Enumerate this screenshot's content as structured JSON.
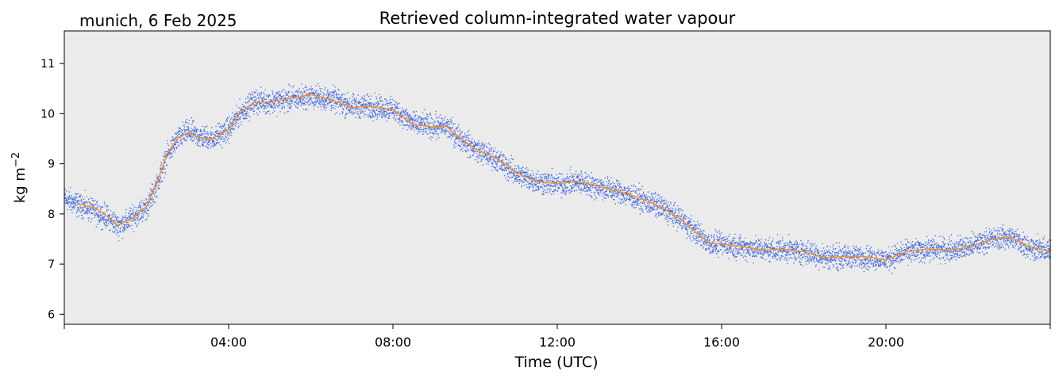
{
  "chart_data": {
    "type": "scatter",
    "title": "Retrieved column-integrated water vapour",
    "subtitle": "munich, 6 Feb 2025",
    "xlabel": "Time (UTC)",
    "ylabel": "kg m",
    "ylabel_superscript": "−2",
    "xlim": [
      0,
      24
    ],
    "ylim": [
      5.8,
      11.65
    ],
    "xticks": [
      {
        "value": 0,
        "label": ""
      },
      {
        "value": 4,
        "label": "04:00"
      },
      {
        "value": 8,
        "label": "08:00"
      },
      {
        "value": 12,
        "label": "12:00"
      },
      {
        "value": 16,
        "label": "16:00"
      },
      {
        "value": 20,
        "label": "20:00"
      },
      {
        "value": 24,
        "label": ""
      }
    ],
    "yticks": [
      {
        "value": 6,
        "label": "6"
      },
      {
        "value": 7,
        "label": "7"
      },
      {
        "value": 8,
        "label": "8"
      },
      {
        "value": 9,
        "label": "9"
      },
      {
        "value": 10,
        "label": "10"
      },
      {
        "value": 11,
        "label": "11"
      }
    ],
    "grid": false,
    "colors": {
      "background": "#ebebeb",
      "raw_points": "#4169e1",
      "smoothed_line": "#ff8c1a"
    },
    "series": [
      {
        "style": "points",
        "color": "#4169e1",
        "x": [
          0.0,
          0.5,
          1.0,
          1.3,
          1.5,
          2.0,
          2.25,
          2.5,
          2.75,
          3.0,
          3.3,
          3.6,
          4.0,
          4.25,
          4.6,
          5.0,
          5.5,
          6.0,
          6.5,
          7.0,
          7.5,
          8.0,
          8.25,
          8.5,
          9.0,
          9.3,
          9.5,
          10.0,
          10.5,
          11.0,
          11.5,
          12.0,
          12.5,
          13.0,
          13.5,
          14.0,
          14.5,
          15.0,
          15.5,
          15.7,
          16.0,
          16.5,
          17.0,
          17.5,
          18.0,
          18.5,
          19.0,
          19.5,
          20.0,
          20.5,
          21.0,
          21.5,
          22.0,
          22.5,
          23.0,
          23.5,
          24.0
        ],
        "y": [
          8.3,
          8.15,
          7.95,
          7.78,
          7.85,
          8.15,
          8.6,
          9.2,
          9.5,
          9.65,
          9.55,
          9.5,
          9.7,
          10.0,
          10.25,
          10.25,
          10.3,
          10.35,
          10.3,
          10.15,
          10.15,
          10.1,
          9.95,
          9.8,
          9.75,
          9.75,
          9.6,
          9.3,
          9.1,
          8.8,
          8.65,
          8.6,
          8.65,
          8.55,
          8.45,
          8.3,
          8.15,
          7.9,
          7.55,
          7.42,
          7.4,
          7.35,
          7.3,
          7.3,
          7.25,
          7.15,
          7.15,
          7.15,
          7.1,
          7.25,
          7.3,
          7.3,
          7.35,
          7.5,
          7.55,
          7.35,
          7.25
        ],
        "spread": 0.17
      },
      {
        "style": "line",
        "color": "#ff8c1a",
        "x": [
          0.35,
          0.75,
          1.0,
          1.3,
          1.6,
          2.0,
          2.25,
          2.5,
          2.75,
          3.0,
          3.3,
          3.6,
          4.0,
          4.25,
          4.6,
          5.0,
          5.5,
          6.0,
          6.5,
          7.0,
          7.5,
          8.0,
          8.25,
          8.5,
          9.0,
          9.3,
          9.5,
          10.0,
          10.5,
          11.0,
          11.5,
          12.0,
          12.5,
          13.0,
          13.5,
          14.0,
          14.5,
          15.0,
          15.5,
          15.7,
          16.0,
          16.5,
          17.0,
          17.5,
          18.0,
          18.5,
          19.0,
          19.5,
          20.0,
          20.5,
          21.0,
          21.5,
          22.0,
          22.5,
          23.0,
          23.5,
          24.0
        ],
        "y": [
          8.2,
          8.12,
          7.98,
          7.78,
          7.88,
          8.15,
          8.6,
          9.2,
          9.5,
          9.62,
          9.52,
          9.5,
          9.68,
          10.0,
          10.22,
          10.23,
          10.3,
          10.38,
          10.28,
          10.12,
          10.15,
          10.08,
          9.93,
          9.78,
          9.73,
          9.75,
          9.6,
          9.3,
          9.12,
          8.82,
          8.65,
          8.6,
          8.65,
          8.55,
          8.45,
          8.32,
          8.15,
          7.9,
          7.55,
          7.42,
          7.4,
          7.35,
          7.28,
          7.3,
          7.25,
          7.13,
          7.15,
          7.15,
          7.08,
          7.25,
          7.3,
          7.28,
          7.33,
          7.48,
          7.55,
          7.35,
          7.25
        ]
      }
    ]
  }
}
